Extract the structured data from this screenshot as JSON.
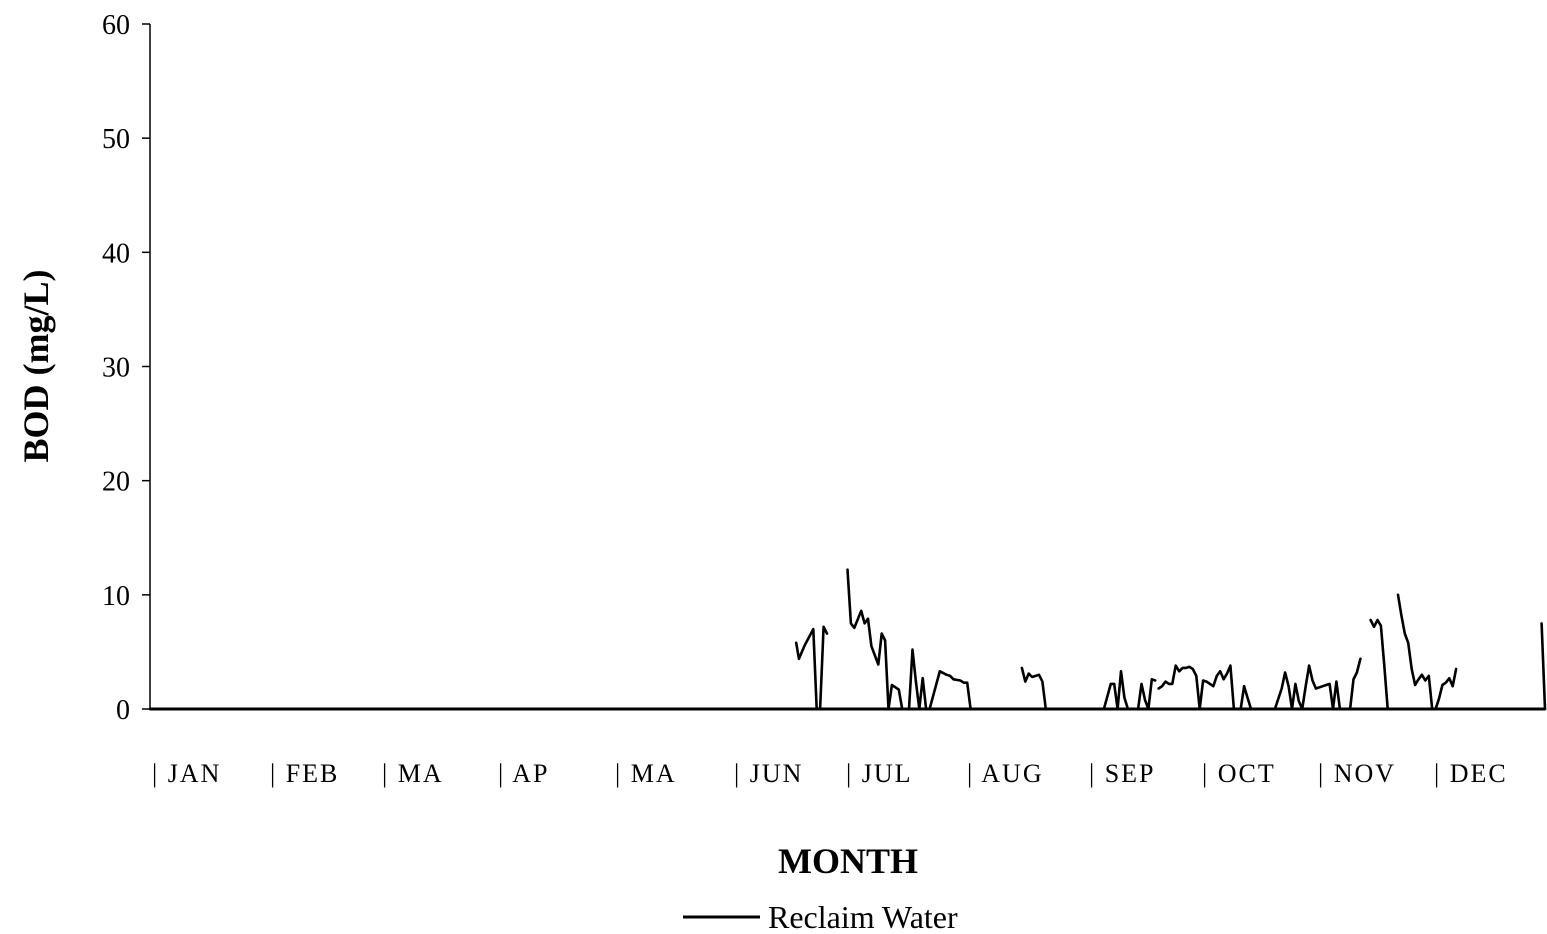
{
  "chart_data": {
    "type": "line",
    "title": "",
    "xlabel": "MONTH",
    "ylabel": "BOD (mg/L)",
    "ylim": [
      0,
      60
    ],
    "yticks": [
      "0",
      "10",
      "20",
      "30",
      "40",
      "50",
      "60"
    ],
    "month_labels": [
      "| JAN",
      "| FEB",
      "| MA",
      "| AP",
      "| MA",
      "| JUN",
      "| JUL",
      "| AUG",
      "| SEP",
      "| OCT",
      "| NOV",
      "| DEC"
    ],
    "grid": false,
    "legend_position": "bottom-center",
    "xlim_day": [
      1,
      366
    ],
    "series": [
      {
        "name": "Reclaim Water",
        "color": "#000000",
        "segments": [
          [
            [
              1,
              0
            ],
            [
              189,
              0
            ]
          ],
          [
            [
              190,
              5.8
            ],
            [
              190.8,
              4.4
            ],
            [
              192.5,
              5.6
            ],
            [
              195,
              7.0
            ],
            [
              196,
              0
            ],
            [
              197,
              0
            ],
            [
              198,
              7.2
            ],
            [
              199,
              6.6
            ]
          ],
          [
            [
              198,
              0
            ],
            [
              205,
              0
            ]
          ],
          [
            [
              205,
              12.2
            ],
            [
              206,
              7.5
            ],
            [
              207,
              7.1
            ],
            [
              209,
              8.6
            ],
            [
              210,
              7.5
            ],
            [
              211,
              7.9
            ],
            [
              212,
              5.5
            ],
            [
              214,
              3.9
            ],
            [
              215,
              6.6
            ],
            [
              216,
              6.0
            ],
            [
              217,
              0
            ],
            [
              218,
              2.1
            ],
            [
              220,
              1.7
            ],
            [
              221,
              0
            ],
            [
              223,
              0
            ],
            [
              224,
              5.2
            ],
            [
              225,
              2.4
            ],
            [
              226,
              0
            ],
            [
              227,
              2.7
            ],
            [
              228,
              0
            ],
            [
              229,
              0
            ],
            [
              232,
              3.3
            ],
            [
              234,
              3.0
            ],
            [
              235,
              2.9
            ],
            [
              236,
              2.6
            ],
            [
              238,
              2.5
            ],
            [
              239,
              2.3
            ],
            [
              240,
              2.3
            ],
            [
              241,
              0
            ]
          ],
          [
            [
              241,
              0
            ],
            [
              256,
              0
            ]
          ],
          [
            [
              256,
              3.6
            ],
            [
              257,
              2.4
            ],
            [
              258,
              3.1
            ],
            [
              259,
              2.8
            ],
            [
              260,
              2.9
            ],
            [
              261,
              3.0
            ],
            [
              262,
              2.4
            ],
            [
              263,
              0
            ],
            [
              280,
              0
            ],
            [
              282,
              2.2
            ],
            [
              283,
              2.2
            ],
            [
              284,
              0
            ],
            [
              285,
              3.3
            ],
            [
              286,
              1.0
            ],
            [
              287,
              0
            ],
            [
              290,
              0
            ],
            [
              291,
              2.2
            ],
            [
              292,
              0.8
            ],
            [
              293,
              0
            ],
            [
              294,
              2.6
            ],
            [
              295,
              2.5
            ]
          ],
          [
            [
              296,
              1.8
            ],
            [
              297,
              2.0
            ],
            [
              298,
              2.4
            ],
            [
              299,
              2.2
            ],
            [
              300,
              2.2
            ],
            [
              301,
              3.8
            ],
            [
              302,
              3.3
            ],
            [
              303,
              3.6
            ],
            [
              304,
              3.6
            ],
            [
              305,
              3.7
            ],
            [
              306,
              3.5
            ],
            [
              307,
              2.9
            ],
            [
              308,
              0
            ],
            [
              309,
              2.5
            ],
            [
              310,
              2.4
            ],
            [
              312,
              2.0
            ],
            [
              313,
              2.9
            ],
            [
              314,
              3.3
            ],
            [
              315,
              2.6
            ],
            [
              316,
              3.1
            ],
            [
              317,
              3.8
            ],
            [
              318,
              0
            ],
            [
              320,
              0
            ],
            [
              321,
              2.0
            ],
            [
              322,
              1.0
            ],
            [
              323,
              0
            ],
            [
              330,
              0
            ],
            [
              332,
              1.8
            ],
            [
              333,
              3.2
            ],
            [
              334,
              2.0
            ],
            [
              335,
              0
            ],
            [
              336,
              2.2
            ],
            [
              337,
              0.7
            ],
            [
              338,
              0
            ],
            [
              339,
              2.0
            ],
            [
              340,
              3.8
            ],
            [
              341,
              2.5
            ],
            [
              342,
              1.8
            ],
            [
              344,
              2.0
            ],
            [
              345,
              2.1
            ],
            [
              346,
              2.2
            ],
            [
              347,
              0
            ],
            [
              348,
              2.4
            ],
            [
              349,
              0
            ],
            [
              350,
              0
            ],
            [
              352,
              0
            ],
            [
              353,
              2.6
            ],
            [
              354,
              3.2
            ],
            [
              355,
              4.4
            ]
          ],
          [
            [
              358,
              7.8
            ],
            [
              359,
              7.2
            ],
            [
              360,
              7.8
            ],
            [
              361,
              7.3
            ],
            [
              362,
              3.8
            ],
            [
              363,
              0
            ],
            [
              366,
              0
            ]
          ],
          [
            [
              366,
              10.0
            ],
            [
              367,
              8.2
            ],
            [
              368,
              6.6
            ],
            [
              369,
              5.8
            ],
            [
              370,
              3.5
            ],
            [
              371,
              2.1
            ],
            [
              372,
              2.6
            ],
            [
              373,
              3.0
            ],
            [
              374,
              2.5
            ],
            [
              375,
              2.9
            ],
            [
              376,
              0
            ],
            [
              377,
              0
            ],
            [
              378,
              0.9
            ],
            [
              379,
              2.1
            ],
            [
              380,
              2.3
            ],
            [
              381,
              2.7
            ],
            [
              382,
              2.0
            ],
            [
              383,
              3.5
            ]
          ],
          [
            [
              376,
              0
            ],
            [
              409,
              0
            ]
          ],
          [
            [
              408,
              7.5
            ],
            [
              409,
              0
            ]
          ]
        ]
      }
    ]
  }
}
